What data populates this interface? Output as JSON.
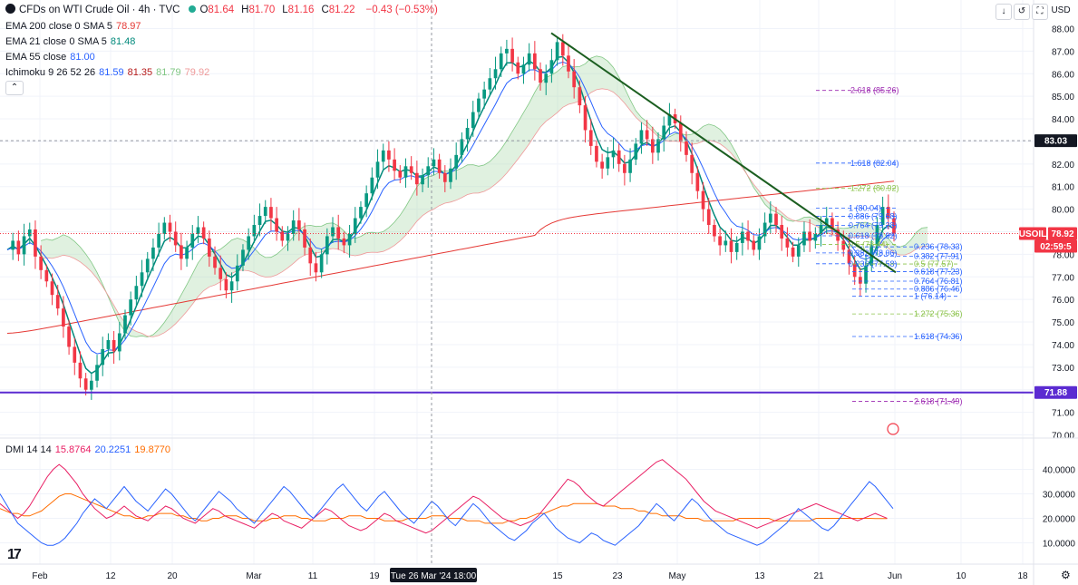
{
  "header": {
    "title": "CFDs on WTI Crude Oil · 4h · TVC",
    "ohlc": [
      {
        "k": "O",
        "v": "81.64"
      },
      {
        "k": "H",
        "v": "81.70"
      },
      {
        "k": "L",
        "v": "81.16"
      },
      {
        "k": "C",
        "v": "81.22"
      }
    ],
    "change": "−0.43 (−0.53%)",
    "currency": "USD"
  },
  "indicators": [
    {
      "label": "EMA 200 close 0 SMA 5",
      "values": [
        "78.97"
      ],
      "colors": [
        "#e53935"
      ]
    },
    {
      "label": "EMA 21 close 0 SMA 5",
      "values": [
        "81.48"
      ],
      "colors": [
        "#00897b"
      ]
    },
    {
      "label": "EMA 55 close",
      "values": [
        "81.00"
      ],
      "colors": [
        "#2962ff"
      ]
    },
    {
      "label": "Ichimoku 9 26 52 26",
      "values": [
        "81.59",
        "81.35",
        "81.79",
        "79.92"
      ],
      "colors": [
        "#2962ff",
        "#b71c1c",
        "#81c784",
        "#ef9a9a"
      ]
    }
  ],
  "dmi": {
    "label": "DMI 14 14",
    "values": [
      "15.8764",
      "20.2251",
      "19.8770"
    ],
    "colors": [
      "#e91e63",
      "#2962ff",
      "#ff6d00"
    ]
  },
  "colors": {
    "up": "#089981",
    "down": "#f23645",
    "ema200": "#e53935",
    "ema21": "#00897b",
    "ema55": "#2962ff",
    "support": "#5b2bd1",
    "trend": "#1b5e20",
    "dmi_plus": "#2962ff",
    "dmi_minus": "#e91e63",
    "adx": "#ff6d00"
  },
  "chart_data": {
    "type": "candlestick",
    "price_axis": {
      "ticks": [
        "88.00",
        "87.00",
        "86.00",
        "85.00",
        "84.00",
        "83.00",
        "82.00",
        "81.00",
        "80.00",
        "79.00",
        "78.00",
        "77.00",
        "76.00",
        "75.00",
        "74.00",
        "73.00",
        "72.00",
        "71.00",
        "70.00"
      ],
      "ylim": [
        69.9,
        88.3
      ]
    },
    "dmi_axis": {
      "ticks": [
        "40.0000",
        "30.0000",
        "20.0000",
        "10.0000"
      ],
      "ylim": [
        5,
        45
      ]
    },
    "x_ticks": [
      "Feb",
      "12",
      "20",
      "Mar",
      "11",
      "19",
      "26",
      "15",
      "23",
      "May",
      "13",
      "21",
      "Jun",
      "10",
      "18"
    ],
    "crosshair_label": "Tue 26 Mar '24   18:00",
    "price_labels": [
      {
        "text": "83.03",
        "value": 83.03,
        "style": "dark"
      },
      {
        "text": "USOIL",
        "value": 78.92,
        "style": "red"
      },
      {
        "text": "78.92",
        "value": 78.92,
        "style": "red"
      },
      {
        "text": "02:59:5",
        "value": 78.92,
        "style": "red-sub"
      },
      {
        "text": "71.88",
        "value": 71.88,
        "style": "purple"
      }
    ],
    "horizontal_lines": [
      {
        "name": "support",
        "value": 71.88
      },
      {
        "name": "resistance",
        "value": 83.03
      }
    ],
    "trendline": {
      "start": {
        "date": "2024-04-12",
        "value": 87.8
      },
      "end": {
        "date": "2024-05-30",
        "value": 77.2
      }
    },
    "fib_upper": [
      {
        "label": "2.618 (85.26)",
        "value": 85.26,
        "color": "#9c27b0"
      },
      {
        "label": "1.618 (82.04)",
        "value": 82.04,
        "color": "#2962ff"
      },
      {
        "label": "1.272 (80.92)",
        "value": 80.92,
        "color": "#8bc34a"
      },
      {
        "label": "1 (80.04)",
        "value": 80.04,
        "color": "#2962ff"
      },
      {
        "label": "0.886 (79.68)",
        "value": 79.68,
        "color": "#2962ff"
      },
      {
        "label": "0.764 (79.28)",
        "value": 79.28,
        "color": "#2962ff"
      },
      {
        "label": "0.618 (78.82)",
        "value": 78.82,
        "color": "#2962ff"
      },
      {
        "label": "0.5 (78.44)",
        "value": 78.44,
        "color": "#8bc34a"
      },
      {
        "label": "0.382 (78.06)",
        "value": 78.06,
        "color": "#2962ff"
      },
      {
        "label": "0.236 (77.58)",
        "value": 77.58,
        "color": "#2962ff"
      }
    ],
    "fib_lower": [
      {
        "label": "0.236 (78.33)",
        "value": 78.33,
        "color": "#2962ff"
      },
      {
        "label": "0.382 (77.91)",
        "value": 77.91,
        "color": "#2962ff"
      },
      {
        "label": "0.5 (77.57)",
        "value": 77.57,
        "color": "#8bc34a"
      },
      {
        "label": "0.618 (77.23)",
        "value": 77.23,
        "color": "#2962ff"
      },
      {
        "label": "0.764 (76.81)",
        "value": 76.81,
        "color": "#2962ff"
      },
      {
        "label": "0.886 (76.46)",
        "value": 76.46,
        "color": "#2962ff"
      },
      {
        "label": "1 (76.14)",
        "value": 76.14,
        "color": "#2962ff"
      },
      {
        "label": "1.272 (75.36)",
        "value": 75.36,
        "color": "#8bc34a"
      },
      {
        "label": "1.618 (74.36)",
        "value": 74.36,
        "color": "#2962ff"
      },
      {
        "label": "2.618 (71.49)",
        "value": 71.49,
        "color": "#9c27b0"
      }
    ],
    "close_series": [
      78.2,
      78.6,
      78.0,
      78.8,
      79.1,
      77.9,
      77.3,
      76.8,
      76.2,
      75.6,
      74.8,
      73.9,
      73.2,
      72.5,
      72.0,
      72.4,
      73.1,
      73.8,
      74.2,
      73.7,
      74.5,
      75.3,
      76.0,
      76.6,
      77.2,
      77.8,
      78.3,
      78.9,
      79.4,
      79.0,
      78.4,
      77.8,
      78.3,
      78.9,
      79.2,
      78.7,
      77.9,
      77.4,
      76.9,
      76.4,
      76.8,
      77.5,
      78.2,
      78.8,
      79.3,
      79.7,
      80.1,
      79.6,
      79.0,
      78.6,
      78.9,
      79.5,
      79.1,
      78.3,
      77.6,
      77.2,
      78.0,
      78.8,
      79.2,
      78.7,
      78.4,
      78.9,
      79.6,
      80.1,
      80.7,
      81.4,
      82.1,
      82.6,
      82.2,
      81.7,
      81.4,
      81.9,
      81.6,
      81.1,
      81.5,
      81.9,
      82.2,
      81.6,
      81.2,
      81.8,
      82.4,
      83.1,
      83.6,
      84.3,
      84.9,
      85.3,
      85.8,
      86.2,
      86.9,
      87.1,
      86.5,
      86.0,
      86.4,
      86.9,
      86.2,
      85.6,
      86.0,
      86.6,
      87.4,
      86.8,
      86.1,
      85.4,
      84.6,
      83.5,
      82.8,
      82.1,
      81.8,
      82.3,
      82.6,
      82.0,
      81.6,
      82.2,
      82.9,
      83.5,
      83.1,
      82.5,
      83.1,
      83.7,
      84.2,
      83.8,
      83.0,
      82.4,
      81.6,
      80.8,
      80.0,
      79.3,
      78.8,
      78.4,
      78.6,
      78.1,
      78.5,
      79.0,
      78.6,
      78.2,
      78.8,
      79.4,
      79.8,
      79.3,
      78.7,
      78.3,
      77.9,
      78.4,
      79.0,
      78.6,
      78.9,
      79.3,
      79.6,
      79.1,
      78.6,
      78.2,
      77.6,
      77.0,
      76.7,
      77.5,
      78.4,
      79.3,
      80.1,
      79.6,
      78.92
    ],
    "dmi_plus": [
      30,
      26,
      22,
      18,
      16,
      14,
      12,
      10,
      9,
      9,
      10,
      12,
      15,
      18,
      22,
      25,
      28,
      26,
      24,
      27,
      30,
      33,
      30,
      27,
      25,
      23,
      26,
      29,
      32,
      30,
      27,
      24,
      21,
      19,
      22,
      25,
      28,
      31,
      29,
      27,
      24,
      22,
      20,
      18,
      21,
      24,
      27,
      30,
      33,
      31,
      28,
      25,
      22,
      20,
      23,
      26,
      29,
      32,
      34,
      31,
      28,
      25,
      23,
      26,
      29,
      31,
      28,
      25,
      22,
      20,
      18,
      21,
      24,
      27,
      25,
      22,
      19,
      17,
      20,
      23,
      26,
      24,
      21,
      18,
      16,
      14,
      12,
      11,
      13,
      15,
      18,
      20,
      22,
      19,
      16,
      14,
      12,
      11,
      10,
      12,
      14,
      13,
      11,
      10,
      9,
      11,
      13,
      15,
      17,
      20,
      23,
      26,
      24,
      21,
      19,
      22,
      25,
      28,
      26,
      23,
      20,
      18,
      16,
      14,
      13,
      12,
      11,
      10,
      9,
      10,
      12,
      14,
      16,
      18,
      21,
      24,
      22,
      20,
      18,
      16,
      15,
      17,
      20,
      23,
      26,
      29,
      32,
      35,
      33,
      30,
      27,
      24
    ],
    "dmi_minus": [
      26,
      24,
      22,
      20,
      22,
      25,
      29,
      33,
      37,
      40,
      42,
      40,
      37,
      34,
      30,
      27,
      24,
      22,
      20,
      21,
      23,
      25,
      23,
      21,
      20,
      19,
      21,
      23,
      25,
      24,
      22,
      20,
      19,
      18,
      20,
      22,
      24,
      23,
      21,
      20,
      19,
      18,
      17,
      16,
      18,
      20,
      22,
      21,
      19,
      18,
      17,
      16,
      18,
      20,
      22,
      24,
      23,
      21,
      19,
      17,
      16,
      15,
      16,
      18,
      20,
      22,
      21,
      19,
      18,
      17,
      16,
      15,
      14,
      15,
      17,
      19,
      21,
      23,
      25,
      27,
      29,
      28,
      26,
      24,
      22,
      20,
      19,
      18,
      17,
      18,
      19,
      21,
      24,
      27,
      30,
      33,
      36,
      35,
      33,
      30,
      28,
      26,
      25,
      27,
      29,
      31,
      33,
      35,
      37,
      39,
      41,
      43,
      44,
      42,
      40,
      38,
      36,
      33,
      30,
      27,
      25,
      23,
      22,
      21,
      20,
      19,
      18,
      17,
      16,
      17,
      18,
      19,
      20,
      21,
      22,
      23,
      24,
      25,
      26,
      25,
      24,
      23,
      22,
      21,
      20,
      19,
      20,
      21,
      22,
      21,
      20
    ],
    "adx": [
      24,
      23,
      22,
      22,
      21,
      21,
      22,
      23,
      25,
      27,
      29,
      30,
      30,
      29,
      28,
      27,
      26,
      25,
      24,
      23,
      22,
      21,
      21,
      20,
      20,
      21,
      21,
      22,
      22,
      22,
      21,
      21,
      20,
      20,
      19,
      19,
      20,
      20,
      21,
      21,
      21,
      20,
      20,
      19,
      19,
      19,
      20,
      20,
      21,
      21,
      21,
      20,
      20,
      19,
      19,
      19,
      20,
      20,
      20,
      21,
      21,
      21,
      20,
      20,
      20,
      19,
      19,
      19,
      19,
      20,
      20,
      20,
      20,
      21,
      21,
      21,
      20,
      20,
      20,
      19,
      19,
      19,
      18,
      18,
      18,
      18,
      19,
      19,
      20,
      20,
      21,
      22,
      22,
      23,
      24,
      25,
      25,
      26,
      26,
      26,
      26,
      26,
      25,
      25,
      25,
      24,
      24,
      24,
      23,
      23,
      22,
      22,
      21,
      21,
      21,
      21,
      20,
      20,
      20,
      19,
      19,
      19,
      19,
      19,
      19,
      20,
      20,
      20,
      20,
      20,
      20,
      19,
      19,
      19,
      19,
      19,
      19,
      19,
      20,
      20,
      20,
      20,
      20,
      20,
      20,
      20,
      20,
      20,
      19.9,
      19.9,
      19.877
    ]
  }
}
